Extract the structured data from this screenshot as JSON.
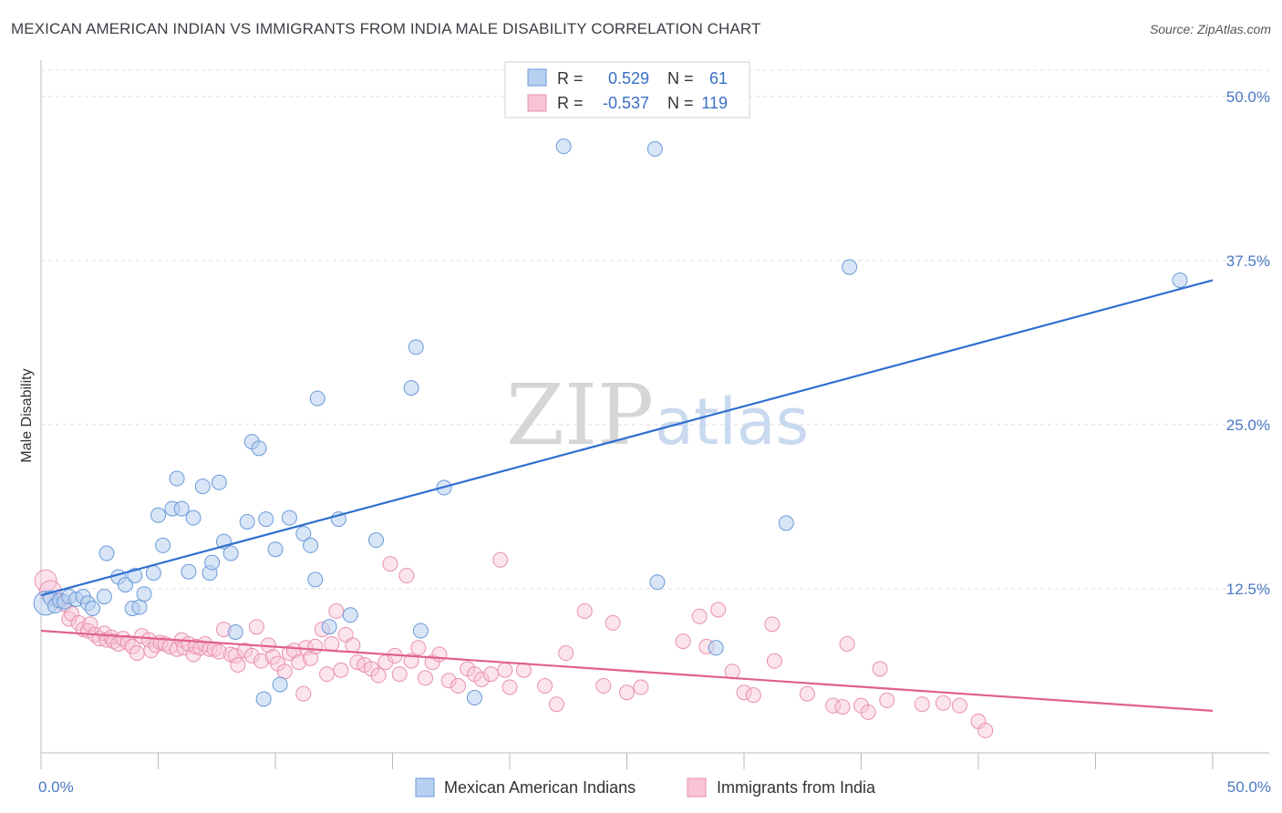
{
  "title": "MEXICAN AMERICAN INDIAN VS IMMIGRANTS FROM INDIA MALE DISABILITY CORRELATION CHART",
  "source": "Source: ZipAtlas.com",
  "watermark": {
    "zip": "ZIP",
    "atlas": "atlas"
  },
  "colors": {
    "blue_fill": "#b8d0f0",
    "blue_stroke": "#6b9ad8",
    "blue_line": "#2f6fcf",
    "pink_fill": "#f8c4d6",
    "pink_stroke": "#e890ae",
    "pink_line": "#e0608a",
    "tick_text": "#4a78c2",
    "grid": "#dddddd"
  },
  "legend_box": {
    "rows": [
      {
        "r_label": "R =",
        "r_value": "0.529",
        "n_label": "N =",
        "n_value": "61"
      },
      {
        "r_label": "R =",
        "r_value": "-0.537",
        "n_label": "N =",
        "n_value": "119"
      }
    ]
  },
  "chart_data": {
    "type": "scatter",
    "title": "MEXICAN AMERICAN INDIAN VS IMMIGRANTS FROM INDIA MALE DISABILITY CORRELATION CHART",
    "xlabel": "",
    "ylabel": "Male Disability",
    "xlim": [
      0,
      50
    ],
    "ylim": [
      0,
      52
    ],
    "x_tick_labels": [
      "0.0%",
      "50.0%"
    ],
    "y_ticks": [
      12.5,
      25.0,
      37.5,
      50.0
    ],
    "y_tick_labels": [
      "12.5%",
      "25.0%",
      "37.5%",
      "50.0%"
    ],
    "grid": "horizontal dashed",
    "legend_position": "bottom-center",
    "series": [
      {
        "name": "Mexican American Indians",
        "color": "#b8d0f0",
        "trend": {
          "x": [
            0,
            50
          ],
          "y": [
            12.0,
            36.0
          ]
        },
        "points": [
          [
            0.2,
            11.4
          ],
          [
            0.4,
            11.8
          ],
          [
            0.6,
            11.2
          ],
          [
            0.8,
            11.6
          ],
          [
            1.0,
            11.5
          ],
          [
            1.2,
            11.9
          ],
          [
            1.5,
            11.7
          ],
          [
            1.8,
            11.9
          ],
          [
            2.0,
            11.4
          ],
          [
            2.2,
            11.0
          ],
          [
            2.7,
            11.9
          ],
          [
            2.8,
            15.2
          ],
          [
            3.3,
            13.4
          ],
          [
            3.6,
            12.8
          ],
          [
            3.9,
            11.0
          ],
          [
            4.0,
            13.5
          ],
          [
            4.2,
            11.1
          ],
          [
            4.4,
            12.1
          ],
          [
            4.8,
            13.7
          ],
          [
            5.0,
            18.1
          ],
          [
            5.2,
            15.8
          ],
          [
            5.6,
            18.6
          ],
          [
            5.8,
            20.9
          ],
          [
            6.0,
            18.6
          ],
          [
            6.3,
            13.8
          ],
          [
            6.5,
            17.9
          ],
          [
            6.9,
            20.3
          ],
          [
            7.2,
            13.7
          ],
          [
            7.3,
            14.5
          ],
          [
            7.6,
            20.6
          ],
          [
            7.8,
            16.1
          ],
          [
            8.1,
            15.2
          ],
          [
            8.3,
            9.2
          ],
          [
            8.8,
            17.6
          ],
          [
            9.0,
            23.7
          ],
          [
            9.3,
            23.2
          ],
          [
            9.5,
            4.1
          ],
          [
            9.6,
            17.8
          ],
          [
            10.0,
            15.5
          ],
          [
            10.2,
            5.2
          ],
          [
            10.6,
            17.9
          ],
          [
            11.2,
            16.7
          ],
          [
            11.5,
            15.8
          ],
          [
            11.7,
            13.2
          ],
          [
            11.8,
            27.0
          ],
          [
            12.3,
            9.6
          ],
          [
            12.7,
            17.8
          ],
          [
            13.2,
            10.5
          ],
          [
            14.3,
            16.2
          ],
          [
            15.8,
            27.8
          ],
          [
            16.0,
            30.9
          ],
          [
            16.2,
            9.3
          ],
          [
            17.2,
            20.2
          ],
          [
            18.5,
            4.2
          ],
          [
            22.3,
            46.2
          ],
          [
            26.2,
            46.0
          ],
          [
            26.3,
            13.0
          ],
          [
            28.8,
            8.0
          ],
          [
            31.8,
            17.5
          ],
          [
            34.5,
            37.0
          ],
          [
            48.6,
            36.0
          ]
        ]
      },
      {
        "name": "Immigrants from India",
        "color": "#f8c4d6",
        "trend": {
          "x": [
            0,
            50
          ],
          "y": [
            9.3,
            3.2
          ]
        },
        "points": [
          [
            0.2,
            13.1
          ],
          [
            0.4,
            12.3
          ],
          [
            0.7,
            11.6
          ],
          [
            1.0,
            11.3
          ],
          [
            1.2,
            10.2
          ],
          [
            1.3,
            10.6
          ],
          [
            1.6,
            9.9
          ],
          [
            1.8,
            9.4
          ],
          [
            2.0,
            9.3
          ],
          [
            2.1,
            9.8
          ],
          [
            2.3,
            9.0
          ],
          [
            2.5,
            8.7
          ],
          [
            2.7,
            9.1
          ],
          [
            2.8,
            8.6
          ],
          [
            3.0,
            8.8
          ],
          [
            3.1,
            8.5
          ],
          [
            3.3,
            8.3
          ],
          [
            3.5,
            8.7
          ],
          [
            3.7,
            8.4
          ],
          [
            3.9,
            8.1
          ],
          [
            4.1,
            7.6
          ],
          [
            4.3,
            8.9
          ],
          [
            4.6,
            8.6
          ],
          [
            4.7,
            7.8
          ],
          [
            4.9,
            8.2
          ],
          [
            5.1,
            8.4
          ],
          [
            5.3,
            8.3
          ],
          [
            5.5,
            8.1
          ],
          [
            5.8,
            7.9
          ],
          [
            6.0,
            8.6
          ],
          [
            6.1,
            8.0
          ],
          [
            6.3,
            8.3
          ],
          [
            6.5,
            7.5
          ],
          [
            6.6,
            8.1
          ],
          [
            6.8,
            8.0
          ],
          [
            7.0,
            8.3
          ],
          [
            7.2,
            7.9
          ],
          [
            7.4,
            7.9
          ],
          [
            7.6,
            7.7
          ],
          [
            7.8,
            9.4
          ],
          [
            8.1,
            7.5
          ],
          [
            8.3,
            7.4
          ],
          [
            8.4,
            6.7
          ],
          [
            8.7,
            7.8
          ],
          [
            9.0,
            7.4
          ],
          [
            9.2,
            9.6
          ],
          [
            9.4,
            7.0
          ],
          [
            9.7,
            8.2
          ],
          [
            9.9,
            7.3
          ],
          [
            10.1,
            6.8
          ],
          [
            10.4,
            6.2
          ],
          [
            10.6,
            7.6
          ],
          [
            10.8,
            7.8
          ],
          [
            11.0,
            6.9
          ],
          [
            11.2,
            4.5
          ],
          [
            11.3,
            8.0
          ],
          [
            11.5,
            7.2
          ],
          [
            11.7,
            8.1
          ],
          [
            12.0,
            9.4
          ],
          [
            12.2,
            6.0
          ],
          [
            12.4,
            8.3
          ],
          [
            12.6,
            10.8
          ],
          [
            12.8,
            6.3
          ],
          [
            13.0,
            9.0
          ],
          [
            13.3,
            8.2
          ],
          [
            13.5,
            6.9
          ],
          [
            13.8,
            6.7
          ],
          [
            14.1,
            6.4
          ],
          [
            14.4,
            5.9
          ],
          [
            14.7,
            6.9
          ],
          [
            14.9,
            14.4
          ],
          [
            15.1,
            7.4
          ],
          [
            15.3,
            6.0
          ],
          [
            15.6,
            13.5
          ],
          [
            15.8,
            7.0
          ],
          [
            16.1,
            8.0
          ],
          [
            16.4,
            5.7
          ],
          [
            16.7,
            6.9
          ],
          [
            17.0,
            7.5
          ],
          [
            17.4,
            5.5
          ],
          [
            17.8,
            5.1
          ],
          [
            18.2,
            6.4
          ],
          [
            18.5,
            6.0
          ],
          [
            18.8,
            5.6
          ],
          [
            19.2,
            6.0
          ],
          [
            19.6,
            14.7
          ],
          [
            19.8,
            6.3
          ],
          [
            20.0,
            5.0
          ],
          [
            20.6,
            6.3
          ],
          [
            21.5,
            5.1
          ],
          [
            22.0,
            3.7
          ],
          [
            22.4,
            7.6
          ],
          [
            23.2,
            10.8
          ],
          [
            24.0,
            5.1
          ],
          [
            24.4,
            9.9
          ],
          [
            25.0,
            4.6
          ],
          [
            25.6,
            5.0
          ],
          [
            27.4,
            8.5
          ],
          [
            28.1,
            10.4
          ],
          [
            28.4,
            8.1
          ],
          [
            28.9,
            10.9
          ],
          [
            29.5,
            6.2
          ],
          [
            30.0,
            4.6
          ],
          [
            30.4,
            4.4
          ],
          [
            31.2,
            9.8
          ],
          [
            31.3,
            7.0
          ],
          [
            32.7,
            4.5
          ],
          [
            33.8,
            3.6
          ],
          [
            34.2,
            3.5
          ],
          [
            34.4,
            8.3
          ],
          [
            35.0,
            3.6
          ],
          [
            35.3,
            3.1
          ],
          [
            35.8,
            6.4
          ],
          [
            36.1,
            4.0
          ],
          [
            37.6,
            3.7
          ],
          [
            38.5,
            3.8
          ],
          [
            39.2,
            3.6
          ],
          [
            40.0,
            2.4
          ],
          [
            40.3,
            1.7
          ]
        ]
      }
    ]
  }
}
